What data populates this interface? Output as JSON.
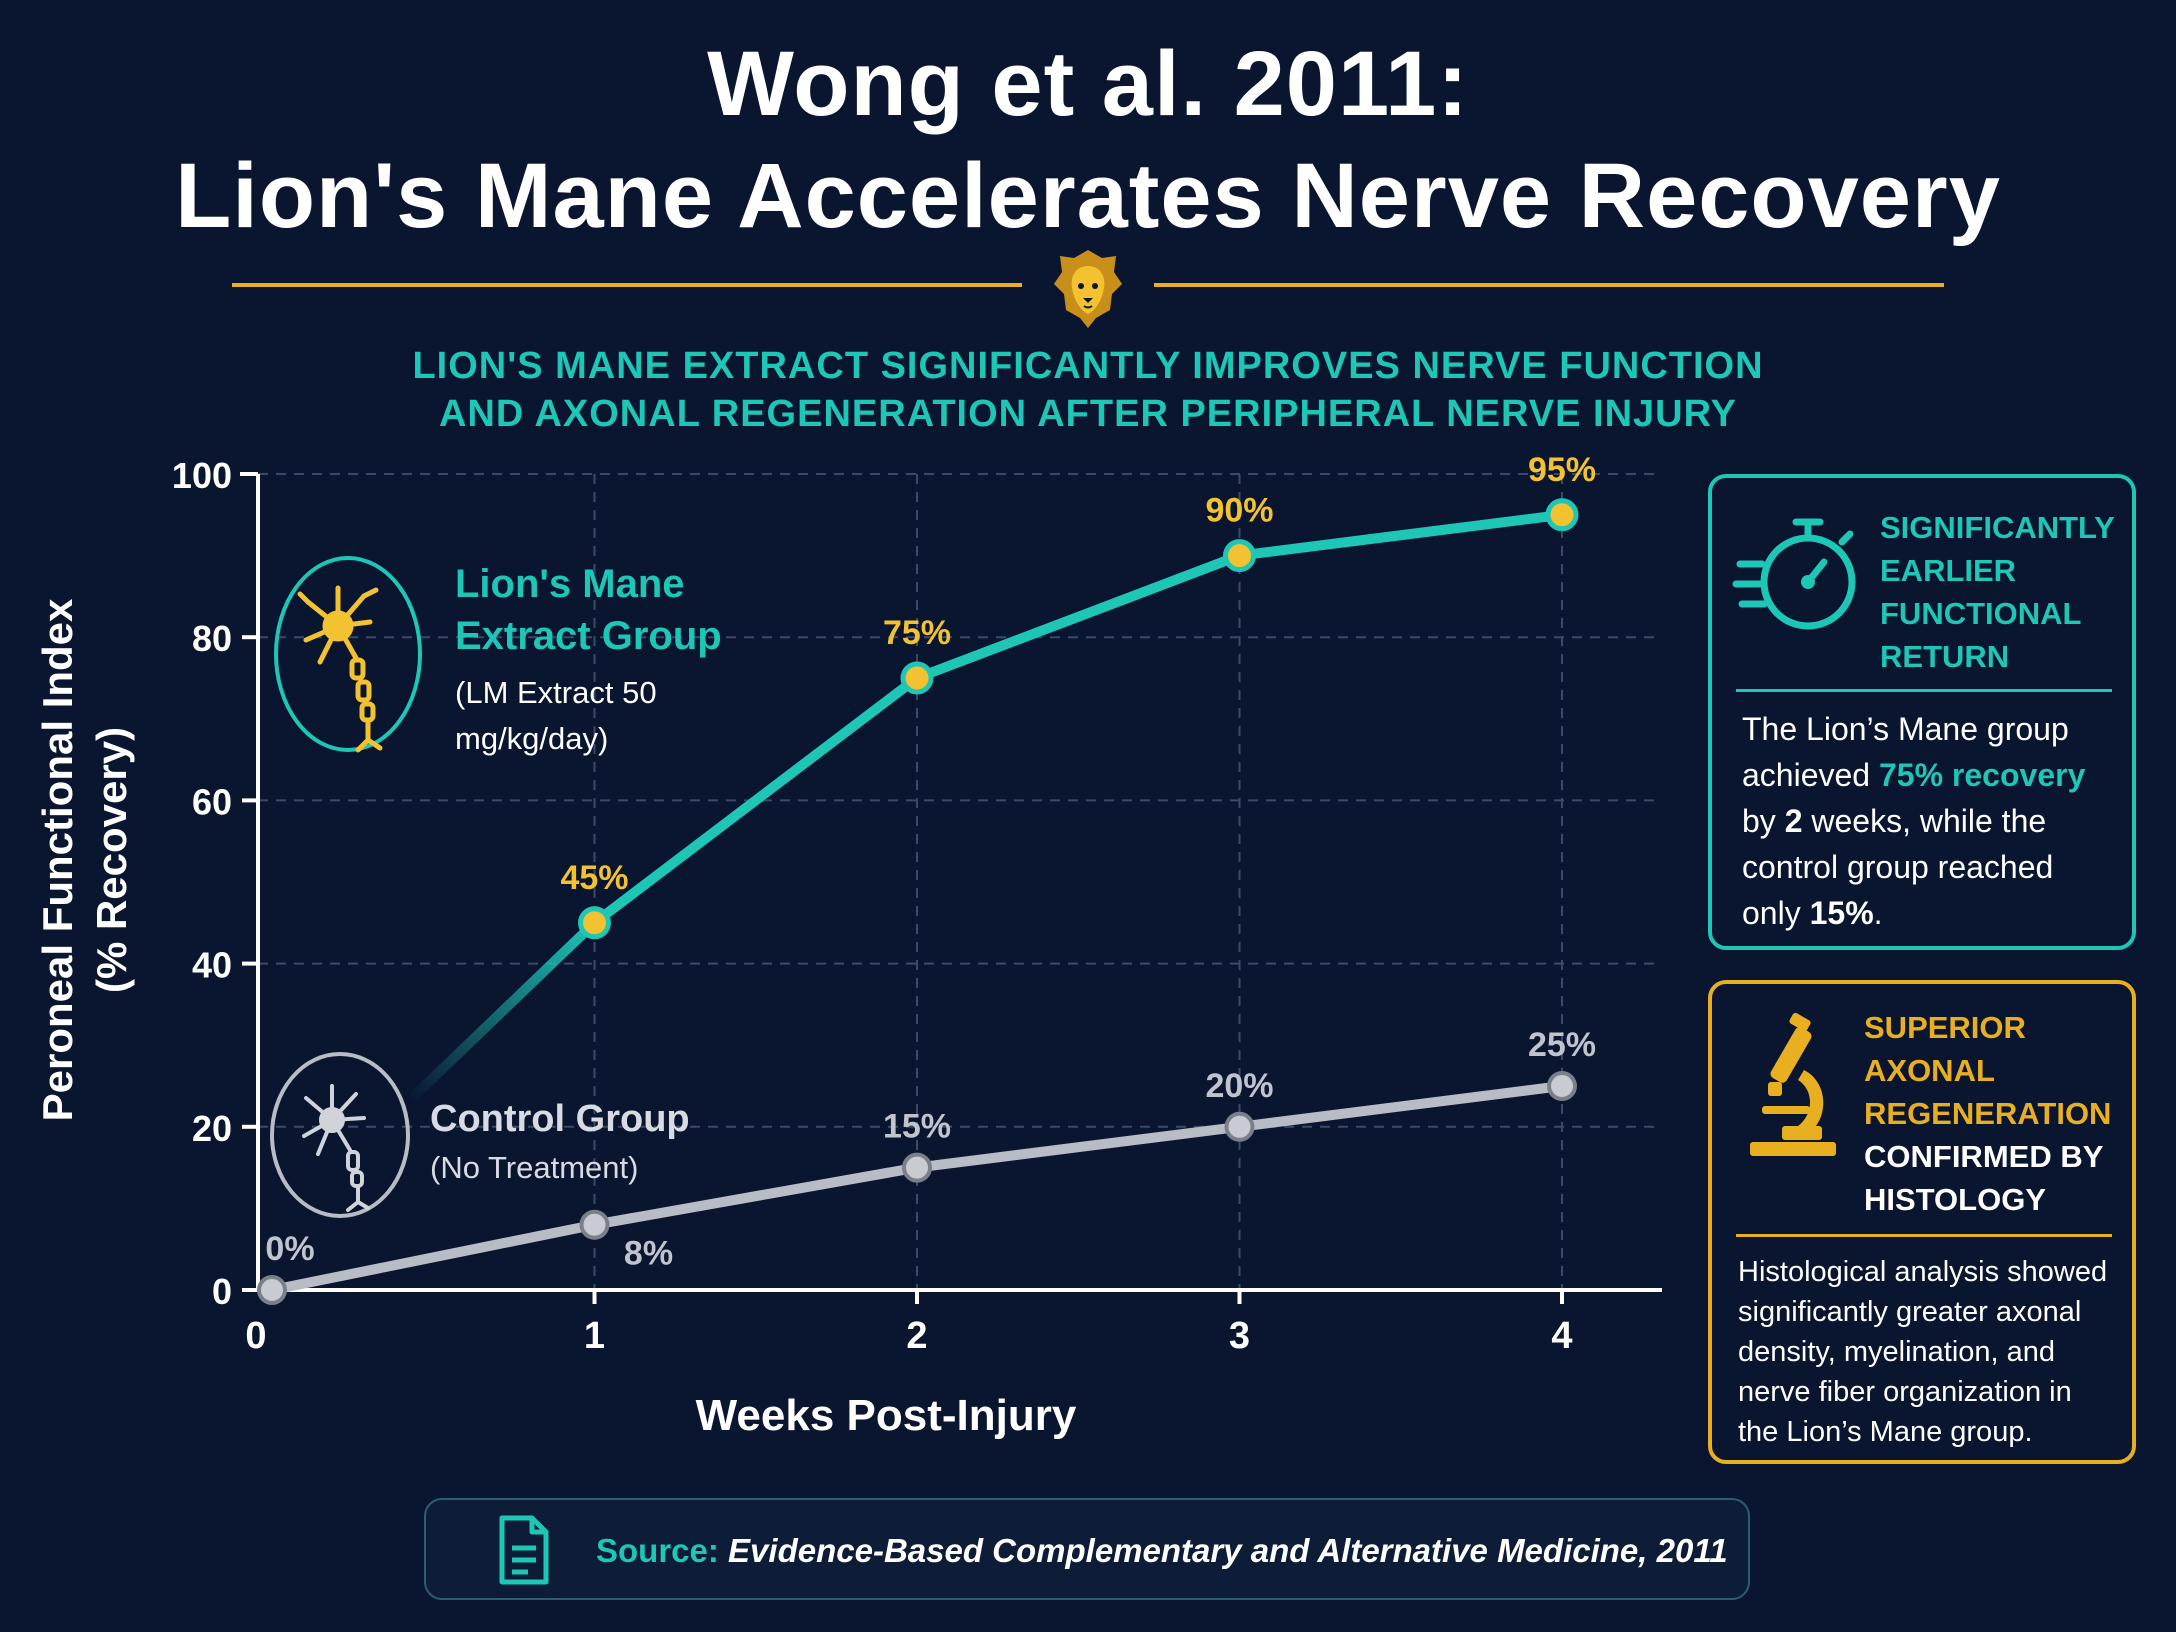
{
  "header": {
    "title_line1": "Wong et al. 2011:",
    "title_line2": "Lion's Mane Accelerates Nerve Recovery",
    "subtitle_line1": "LION'S MANE EXTRACT SIGNIFICANTLY IMPROVES NERVE FUNCTION",
    "subtitle_line2": "AND AXONAL REGENERATION AFTER PERIPHERAL NERVE INJURY"
  },
  "legend": {
    "lm_title": "Lion's Mane Extract Group",
    "lm_dose": "(LM Extract 50 mg/kg/day)",
    "control_title": "Control Group",
    "control_sub": "(No Treatment)"
  },
  "panels": {
    "functional": {
      "heading": "SIGNIFICANTLY EARLIER FUNCTIONAL RETURN",
      "body_1": "The Lion’s Mane group achieved ",
      "body_hl1": "75% recovery",
      "body_2": " by ",
      "body_hl2": "2",
      "body_3": " weeks, while the control group reached only ",
      "body_hl3": "15%",
      "body_4": "."
    },
    "histology": {
      "heading_gold": "SUPERIOR AXONAL REGENERATION",
      "heading_white": "CONFIRMED BY HISTOLOGY",
      "body": "Histological analysis showed significantly greater axonal density, myelination, and nerve fiber organization in the Lion’s Mane group."
    }
  },
  "source": {
    "label": "Source:",
    "citation": "Evidence-Based Complementary and Alternative Medicine, 2011"
  },
  "colors": {
    "background": "#0a1530",
    "teal": "#1ec6b6",
    "gold": "#e8b020",
    "control_gray": "#b8bcc4"
  },
  "icons": [
    "lion-head-icon",
    "neuron-icon",
    "stopwatch-icon",
    "microscope-icon",
    "document-icon"
  ],
  "chart_data": {
    "type": "line",
    "title": "",
    "xlabel": "Weeks Post-Injury",
    "ylabel": "Peroneal Functional Index (% Recovery)",
    "x": [
      0,
      1,
      2,
      3,
      4
    ],
    "xlim": [
      0,
      4
    ],
    "ylim": [
      0,
      100
    ],
    "yticks": [
      0,
      20,
      40,
      60,
      80,
      100
    ],
    "grid": true,
    "series": [
      {
        "name": "Lion's Mane Extract Group",
        "x": [
          1,
          2,
          3,
          4
        ],
        "values": [
          45,
          75,
          90,
          95
        ],
        "labels": [
          "45%",
          "75%",
          "90%",
          "95%"
        ],
        "color": "#1ec6b6",
        "marker_color": "#f2c230"
      },
      {
        "name": "Control Group",
        "x": [
          0,
          1,
          2,
          3,
          4
        ],
        "values": [
          0,
          8,
          15,
          20,
          25
        ],
        "labels": [
          "0%",
          "8%",
          "15%",
          "20%",
          "25%"
        ],
        "color": "#b8bcc4",
        "marker_color": "#c8ccd2"
      }
    ]
  }
}
